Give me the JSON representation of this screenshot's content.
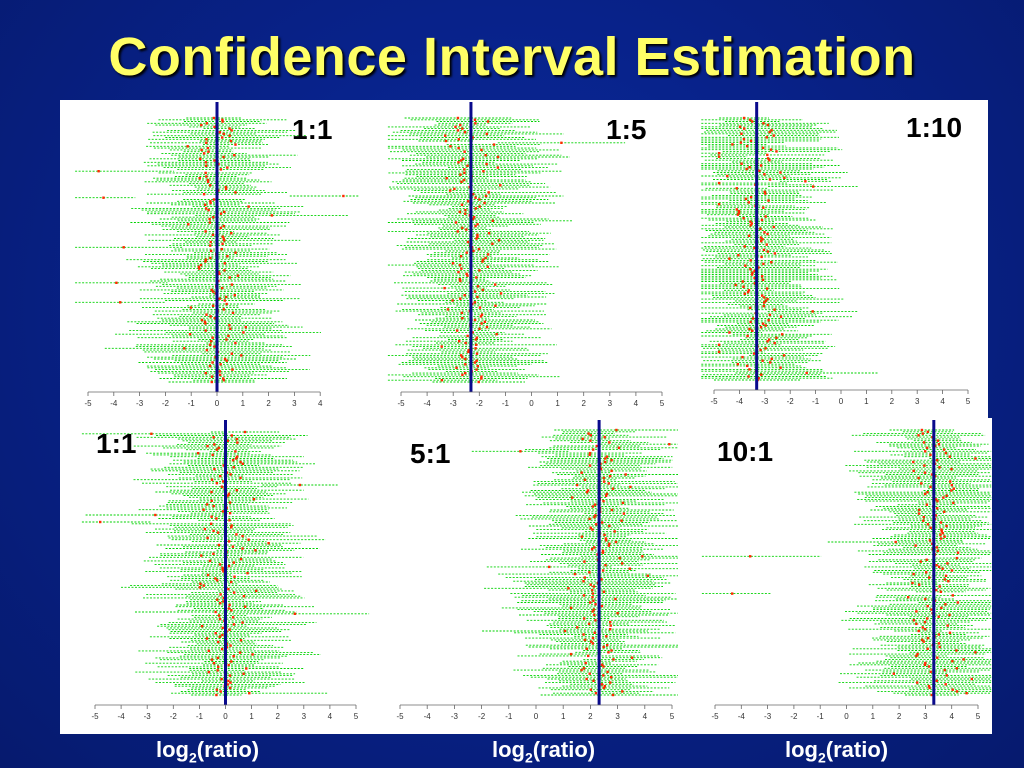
{
  "title": "Confidence Interval Estimation",
  "xlabel_base": "log",
  "xlabel_sub": "2",
  "xlabel_rest": "(ratio)",
  "colors": {
    "interval": "#00d200",
    "point": "#ff2a00",
    "ref_line": "#0a0a8c",
    "axis": "#666666"
  },
  "chart_data": [
    {
      "type": "scatter",
      "panel_label": "1:1",
      "true_log2": 0,
      "xlim": [
        -5,
        5
      ],
      "xticks": [
        -5,
        -4,
        -3,
        -2,
        -1,
        0,
        1,
        2,
        3,
        4
      ],
      "seed": 11
    },
    {
      "type": "scatter",
      "panel_label": "1:5",
      "true_log2": -2.32,
      "xlim": [
        -5,
        5
      ],
      "xticks": [
        -5,
        -4,
        -3,
        -2,
        -1,
        0,
        1,
        2,
        3,
        4,
        5
      ],
      "seed": 23
    },
    {
      "type": "scatter",
      "panel_label": "1:10",
      "true_log2": -3.32,
      "xlim": [
        -5,
        5
      ],
      "xticks": [
        -5,
        -4,
        -3,
        -2,
        -1,
        0,
        1,
        2,
        3,
        4,
        5
      ],
      "seed": 37
    },
    {
      "type": "scatter",
      "panel_label": "1:1",
      "true_log2": 0,
      "xlim": [
        -5,
        5
      ],
      "xticks": [
        -5,
        -4,
        -3,
        -2,
        -1,
        0,
        1,
        2,
        3,
        4,
        5
      ],
      "seed": 41
    },
    {
      "type": "scatter",
      "panel_label": "5:1",
      "true_log2": 2.32,
      "xlim": [
        -5,
        5
      ],
      "xticks": [
        -5,
        -4,
        -3,
        -2,
        -1,
        0,
        1,
        2,
        3,
        4,
        5
      ],
      "seed": 53
    },
    {
      "type": "scatter",
      "panel_label": "10:1",
      "true_log2": 3.32,
      "xlim": [
        -5,
        5
      ],
      "xticks": [
        -5,
        -4,
        -3,
        -2,
        -1,
        0,
        1,
        2,
        3,
        4,
        5
      ],
      "seed": 67
    }
  ]
}
